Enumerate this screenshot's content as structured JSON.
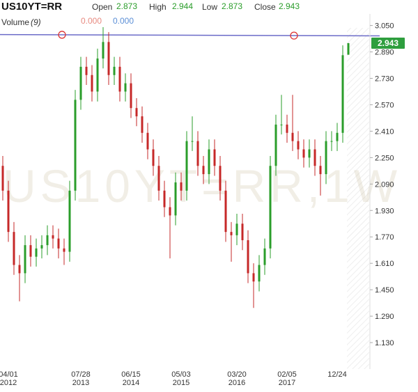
{
  "chart_data": {
    "type": "candlestick",
    "title": "US10YT=RR",
    "watermark": "US10YT=RR,1W",
    "header": {
      "open_label": "Open",
      "open": "2.873",
      "high_label": "High",
      "high": "2.944",
      "low_label": "Low",
      "low": "2.873",
      "close_label": "Close",
      "close": "2.943",
      "volume_label": "Volume",
      "volume_period": "(9)",
      "volume_values": [
        "0.000",
        "0.000"
      ]
    },
    "categories": [
      null,
      {
        "date": "04/01",
        "year": "2012"
      },
      null,
      null,
      null,
      null,
      null,
      null,
      null,
      null,
      null,
      null,
      null,
      null,
      {
        "date": "07/28",
        "year": "2013"
      },
      null,
      null,
      null,
      null,
      null,
      null,
      null,
      null,
      {
        "date": "06/15",
        "year": "2014"
      },
      null,
      null,
      null,
      null,
      null,
      null,
      null,
      null,
      {
        "date": "05/03",
        "year": "2015"
      },
      null,
      null,
      null,
      null,
      null,
      null,
      null,
      null,
      null,
      {
        "date": "03/20",
        "year": "2016"
      },
      null,
      null,
      null,
      null,
      null,
      null,
      null,
      null,
      {
        "date": "02/05",
        "year": "2017"
      },
      null,
      null,
      null,
      null,
      null,
      null,
      null,
      null,
      {
        "date": "12/24"
      },
      null,
      null
    ],
    "open": [
      2.2,
      2.05,
      1.8,
      1.6,
      1.55,
      1.72,
      1.65,
      1.7,
      1.72,
      1.78,
      1.76,
      1.7,
      1.68,
      2.05,
      2.6,
      2.8,
      2.75,
      2.65,
      2.85,
      2.95,
      2.75,
      2.8,
      2.65,
      2.7,
      2.55,
      2.5,
      2.4,
      2.3,
      2.2,
      2.05,
      1.95,
      1.9,
      2.1,
      2.05,
      2.35,
      2.35,
      2.2,
      2.15,
      2.3,
      2.2,
      2.05,
      1.8,
      1.78,
      1.85,
      1.75,
      1.55,
      1.5,
      1.6,
      1.7,
      2.2,
      2.45,
      2.45,
      2.4,
      2.35,
      2.3,
      2.25,
      2.3,
      2.2,
      2.15,
      2.35,
      2.35,
      2.4,
      2.873
    ],
    "high": [
      2.26,
      2.11,
      1.86,
      1.66,
      1.78,
      1.78,
      1.76,
      1.78,
      1.84,
      1.84,
      1.82,
      1.76,
      2.11,
      2.66,
      2.86,
      2.86,
      2.81,
      2.91,
      3.04,
      3.01,
      2.86,
      2.86,
      2.76,
      2.76,
      2.61,
      2.56,
      2.46,
      2.36,
      2.26,
      2.11,
      2.01,
      2.16,
      2.16,
      2.41,
      2.5,
      2.41,
      2.26,
      2.36,
      2.36,
      2.26,
      2.11,
      1.86,
      1.91,
      1.91,
      1.81,
      1.61,
      1.66,
      1.76,
      2.26,
      2.51,
      2.63,
      2.51,
      2.63,
      2.41,
      2.36,
      2.36,
      2.36,
      2.26,
      2.41,
      2.41,
      2.46,
      2.93,
      2.944
    ],
    "low": [
      1.99,
      1.74,
      1.54,
      1.38,
      1.49,
      1.59,
      1.59,
      1.64,
      1.66,
      1.7,
      1.64,
      1.6,
      1.62,
      1.99,
      2.54,
      2.69,
      2.59,
      2.59,
      2.79,
      2.69,
      2.69,
      2.59,
      2.59,
      2.49,
      2.44,
      2.34,
      2.24,
      2.14,
      1.99,
      1.89,
      1.64,
      1.84,
      1.99,
      1.99,
      2.29,
      2.14,
      2.09,
      2.09,
      2.14,
      1.99,
      1.74,
      1.62,
      1.72,
      1.69,
      1.49,
      1.34,
      1.44,
      1.54,
      1.64,
      2.14,
      2.39,
      2.34,
      2.29,
      2.24,
      2.19,
      2.19,
      2.14,
      2.02,
      2.09,
      2.29,
      2.29,
      2.34,
      2.873
    ],
    "close": [
      2.05,
      1.8,
      1.6,
      1.55,
      1.72,
      1.65,
      1.7,
      1.72,
      1.78,
      1.76,
      1.7,
      1.68,
      2.05,
      2.6,
      2.8,
      2.75,
      2.65,
      2.85,
      2.95,
      2.75,
      2.8,
      2.65,
      2.7,
      2.55,
      2.5,
      2.4,
      2.3,
      2.2,
      2.05,
      1.95,
      1.9,
      2.1,
      2.05,
      2.35,
      2.35,
      2.2,
      2.15,
      2.3,
      2.2,
      2.05,
      1.8,
      1.78,
      1.85,
      1.75,
      1.55,
      1.5,
      1.6,
      1.7,
      2.2,
      2.45,
      2.45,
      2.4,
      2.35,
      2.3,
      2.25,
      2.3,
      2.2,
      2.15,
      2.35,
      2.35,
      2.4,
      2.87,
      2.943
    ],
    "colors": {
      "up": "#2a9d2a",
      "down": "#c62828",
      "last": "#2e9e3e"
    },
    "ylim": [
      0.97,
      3.12
    ],
    "yticks": [
      {
        "value": 3.05,
        "label": "3.050"
      },
      {
        "value": 2.89,
        "label": "2.890"
      },
      {
        "value": 2.73,
        "label": "2.730"
      },
      {
        "value": 2.57,
        "label": "2.570"
      },
      {
        "value": 2.41,
        "label": "2.410"
      },
      {
        "value": 2.25,
        "label": "2.250"
      },
      {
        "value": 2.09,
        "label": "2.090"
      },
      {
        "value": 1.93,
        "label": "1.930"
      },
      {
        "value": 1.77,
        "label": "1.770"
      },
      {
        "value": 1.61,
        "label": "1.610"
      },
      {
        "value": 1.45,
        "label": "1.450"
      },
      {
        "value": 1.29,
        "label": "1.290"
      },
      {
        "value": 1.13,
        "label": "1.130"
      }
    ],
    "trendline": {
      "color": "#6b6bc8",
      "values": [
        2.995,
        2.987
      ]
    }
  }
}
